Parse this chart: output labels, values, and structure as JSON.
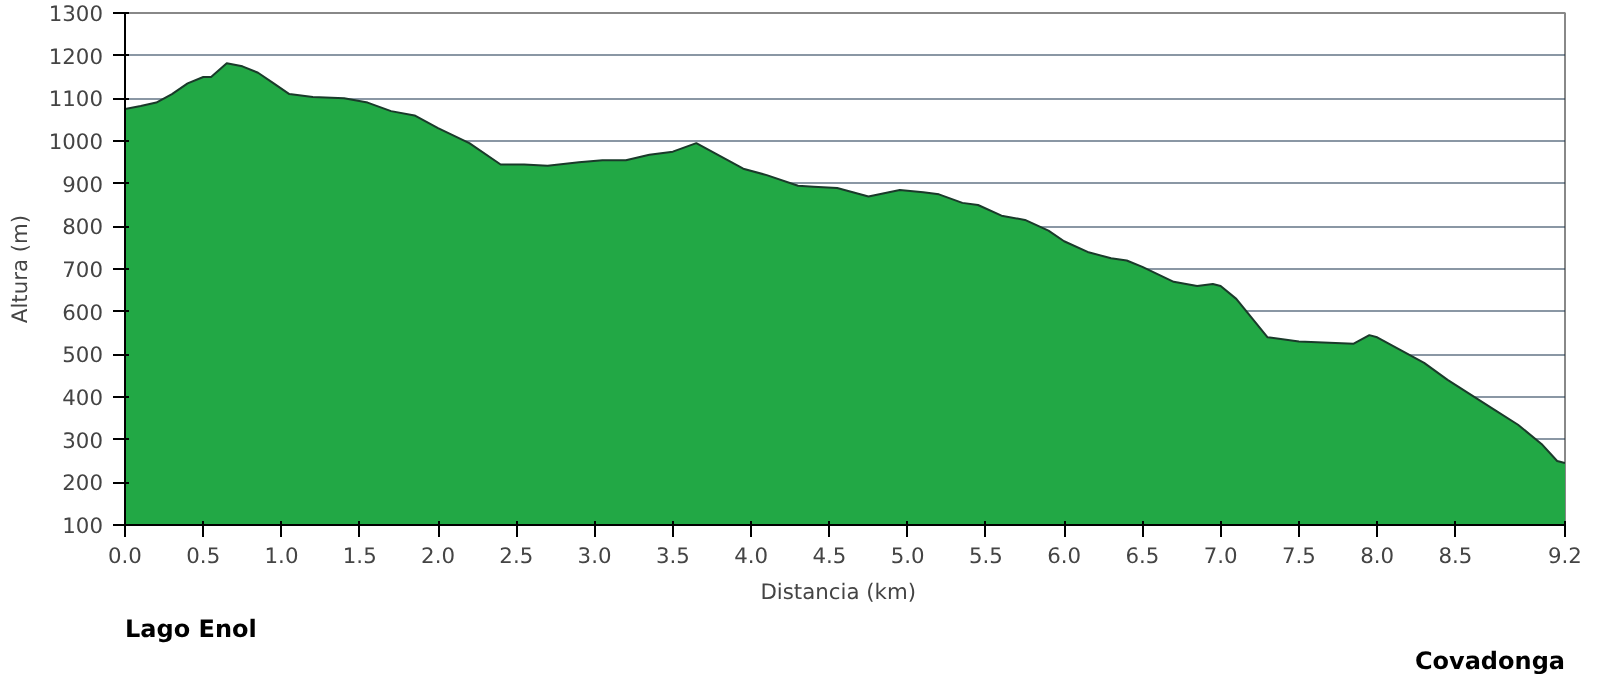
{
  "chart_data": {
    "type": "area",
    "xlabel": "Distancia   (km)",
    "ylabel": "Altura (m)",
    "x": [
      0,
      0.1,
      0.2,
      0.3,
      0.4,
      0.5,
      0.55,
      0.65,
      0.75,
      0.85,
      0.95,
      1.05,
      1.2,
      1.4,
      1.55,
      1.7,
      1.85,
      2.0,
      2.2,
      2.4,
      2.55,
      2.7,
      2.9,
      3.05,
      3.2,
      3.35,
      3.5,
      3.65,
      3.8,
      3.95,
      4.1,
      4.3,
      4.4,
      4.55,
      4.75,
      4.95,
      5.1,
      5.2,
      5.35,
      5.45,
      5.6,
      5.75,
      5.9,
      6.0,
      6.15,
      6.3,
      6.4,
      6.5,
      6.7,
      6.85,
      6.95,
      7.0,
      7.1,
      7.2,
      7.3,
      7.5,
      7.85,
      7.95,
      8.0,
      8.15,
      8.3,
      8.45,
      8.6,
      8.75,
      8.9,
      9.05,
      9.15,
      9.2
    ],
    "series": [
      {
        "color": "#22a845",
        "values": [
          1075,
          1082,
          1090,
          1110,
          1135,
          1150,
          1150,
          1182,
          1175,
          1160,
          1135,
          1110,
          1103,
          1100,
          1090,
          1070,
          1060,
          1030,
          995,
          945,
          945,
          942,
          950,
          955,
          955,
          968,
          975,
          995,
          965,
          935,
          920,
          895,
          893,
          890,
          870,
          885,
          880,
          875,
          855,
          850,
          825,
          815,
          790,
          765,
          740,
          725,
          720,
          705,
          670,
          660,
          665,
          660,
          630,
          585,
          540,
          530,
          525,
          545,
          540,
          510,
          480,
          440,
          405,
          370,
          335,
          290,
          250,
          245
        ]
      }
    ],
    "xlim": [
      0,
      9.2
    ],
    "ylim": [
      100,
      1300
    ],
    "xticks": [
      {
        "value": 0,
        "label": "0.0"
      },
      0.5,
      {
        "value": 1,
        "label": "1.0"
      },
      1.5,
      {
        "value": 2,
        "label": "2.0"
      },
      2.5,
      {
        "value": 3,
        "label": "3.0"
      },
      3.5,
      {
        "value": 4,
        "label": "4.0"
      },
      4.5,
      {
        "value": 5,
        "label": "5.0"
      },
      5.5,
      {
        "value": 6,
        "label": "6.0"
      },
      6.5,
      {
        "value": 7,
        "label": "7.0"
      },
      7.5,
      {
        "value": 8,
        "label": "8.0"
      },
      8.5,
      9.2
    ],
    "yticks": [
      100,
      200,
      300,
      400,
      500,
      600,
      700,
      800,
      900,
      1000,
      1100,
      1200,
      1300
    ],
    "grid": "y",
    "annotations": [
      "Lago Enol",
      "Covadonga"
    ]
  }
}
